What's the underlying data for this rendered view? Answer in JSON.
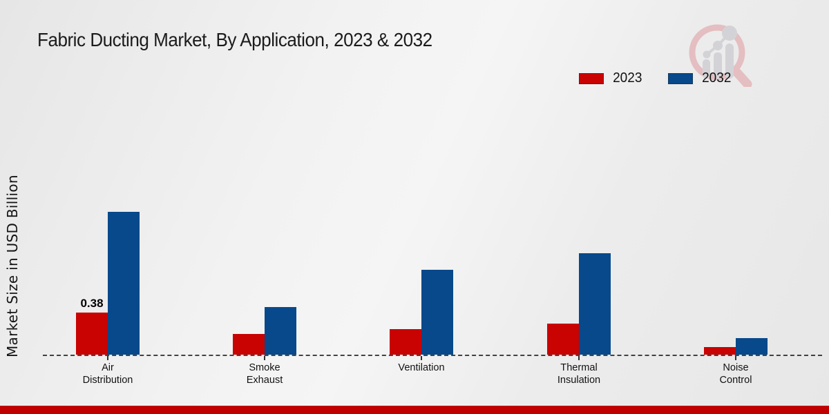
{
  "title": "Fabric Ducting Market, By Application, 2023 & 2032",
  "ylabel": "Market Size in USD Billion",
  "colors": {
    "series_2023": "#c90202",
    "series_2032": "#07498b",
    "footer_band": "#c00000",
    "baseline": "#454545",
    "title_text": "#1b1b1b"
  },
  "legend": {
    "position": "top-right",
    "items": [
      {
        "label": "2023",
        "color": "#c90202"
      },
      {
        "label": "2032",
        "color": "#07498b"
      }
    ]
  },
  "watermark_icon": "magnifier-bar-chart-logo",
  "chart_data": {
    "type": "bar",
    "title": "Fabric Ducting Market, By Application, 2023 & 2032",
    "xlabel": "",
    "ylabel": "Market Size in USD Billion",
    "grid": false,
    "legend_position": "top-right",
    "baseline_value": 0,
    "ylim": [
      0,
      1.4
    ],
    "categories": [
      "Air\nDistribution",
      "Smoke\nExhaust",
      "Ventilation",
      "Thermal\nInsulation",
      "Noise\nControl"
    ],
    "series": [
      {
        "name": "2023",
        "color": "#c90202",
        "values": [
          0.38,
          0.19,
          0.23,
          0.28,
          0.07
        ]
      },
      {
        "name": "2032",
        "color": "#07498b",
        "values": [
          1.3,
          0.43,
          0.77,
          0.92,
          0.15
        ]
      }
    ],
    "data_labels": [
      {
        "series_index": 0,
        "category_index": 0,
        "text": "0.38"
      }
    ]
  }
}
